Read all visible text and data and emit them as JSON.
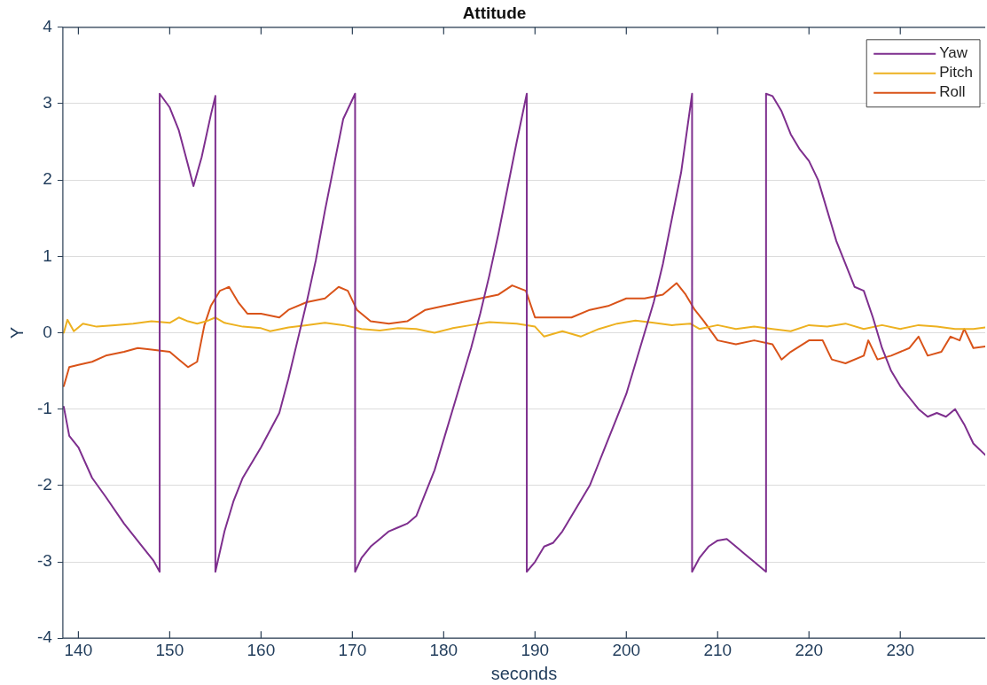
{
  "chart_data": {
    "type": "line",
    "title": "Attitude",
    "xlabel": "seconds",
    "ylabel": "Y",
    "xlim": [
      138.3,
      239.3
    ],
    "xticks": [
      140,
      150,
      160,
      170,
      180,
      190,
      200,
      210,
      220,
      230
    ],
    "ylim": [
      -4,
      4
    ],
    "yticks": [
      -4,
      -3,
      -2,
      -1,
      0,
      1,
      2,
      3,
      4
    ],
    "grid": "y",
    "legend": "top right",
    "marker": "none",
    "line_style": "solid",
    "series": [
      {
        "name": "Yaw",
        "color": "#7e2f8e",
        "x": [
          138.4,
          139,
          140,
          141.5,
          143,
          145,
          147,
          148.2,
          148.9,
          148.9,
          150,
          151,
          152,
          152.6,
          153.5,
          154.5,
          155,
          155,
          156,
          157,
          158,
          160,
          162,
          163,
          164,
          165,
          166,
          167,
          168,
          169,
          170.3,
          170.3,
          171,
          172,
          173,
          174,
          175,
          176,
          177,
          178,
          179,
          180,
          181,
          182,
          183,
          184,
          185,
          186,
          187,
          188,
          189.1,
          189.1,
          190,
          191,
          192,
          193,
          194,
          195,
          196,
          197,
          198,
          199,
          200,
          201,
          202,
          203,
          204,
          205,
          206,
          207.2,
          207.2,
          208,
          209,
          210,
          211,
          212,
          213,
          214,
          215.3,
          215.3,
          216,
          217,
          218,
          219,
          220,
          221,
          222,
          223,
          224,
          225,
          226,
          227,
          228,
          229,
          230,
          231,
          232,
          233,
          234,
          235,
          236,
          237,
          238,
          239.3
        ],
        "values": [
          -0.97,
          -1.35,
          -1.5,
          -1.9,
          -2.15,
          -2.5,
          -2.8,
          -2.98,
          -3.13,
          3.13,
          2.95,
          2.65,
          2.2,
          1.92,
          2.3,
          2.85,
          3.1,
          -3.13,
          -2.6,
          -2.2,
          -1.9,
          -1.5,
          -1.05,
          -0.6,
          -0.1,
          0.4,
          0.95,
          1.6,
          2.2,
          2.8,
          3.13,
          -3.13,
          -2.95,
          -2.8,
          -2.7,
          -2.6,
          -2.55,
          -2.5,
          -2.4,
          -2.1,
          -1.8,
          -1.4,
          -1,
          -0.6,
          -0.2,
          0.25,
          0.75,
          1.3,
          1.9,
          2.5,
          3.13,
          -3.13,
          -3,
          -2.8,
          -2.75,
          -2.6,
          -2.4,
          -2.2,
          -2,
          -1.7,
          -1.4,
          -1.1,
          -0.8,
          -0.4,
          0,
          0.4,
          0.9,
          1.5,
          2.1,
          3.13,
          -3.13,
          -2.95,
          -2.8,
          -2.72,
          -2.7,
          -2.8,
          -2.9,
          -3,
          -3.13,
          3.13,
          3.1,
          2.9,
          2.6,
          2.4,
          2.25,
          2,
          1.6,
          1.2,
          0.9,
          0.6,
          0.55,
          0.2,
          -0.2,
          -0.5,
          -0.7,
          -0.85,
          -1,
          -1.1,
          -1.05,
          -1.1,
          -1,
          -1.2,
          -1.45,
          -1.6
        ]
      },
      {
        "name": "Pitch",
        "color": "#edb120",
        "x": [
          138.4,
          138.8,
          139.5,
          140.5,
          142,
          144,
          146,
          148,
          150,
          151,
          152,
          153,
          154,
          155,
          156,
          158,
          160,
          161,
          163,
          165,
          167,
          169,
          171,
          173,
          175,
          177,
          179,
          181,
          183,
          185,
          188,
          190,
          191,
          193,
          195,
          197,
          199,
          201,
          203,
          205,
          207,
          208,
          210,
          212,
          214,
          216,
          218,
          220,
          222,
          224,
          226,
          228,
          230,
          232,
          234,
          236,
          238,
          239.3
        ],
        "values": [
          0,
          0.17,
          0.02,
          0.12,
          0.08,
          0.1,
          0.12,
          0.15,
          0.13,
          0.2,
          0.15,
          0.12,
          0.15,
          0.2,
          0.13,
          0.08,
          0.06,
          0.02,
          0.07,
          0.1,
          0.13,
          0.1,
          0.05,
          0.03,
          0.06,
          0.05,
          0,
          0.06,
          0.1,
          0.14,
          0.12,
          0.08,
          -0.05,
          0.02,
          -0.05,
          0.05,
          0.12,
          0.16,
          0.13,
          0.1,
          0.12,
          0.05,
          0.1,
          0.05,
          0.08,
          0.05,
          0.02,
          0.1,
          0.08,
          0.12,
          0.05,
          0.1,
          0.05,
          0.1,
          0.08,
          0.05,
          0.05,
          0.07
        ]
      },
      {
        "name": "Roll",
        "color": "#d95319",
        "x": [
          138.4,
          139,
          140,
          141.5,
          143,
          145,
          146.5,
          148,
          150,
          151,
          152,
          153,
          153.8,
          154.5,
          155.5,
          156.5,
          157.5,
          158.5,
          160,
          162,
          163,
          165,
          167,
          168.5,
          169.5,
          170.5,
          172,
          174,
          176,
          178,
          180,
          182,
          184,
          186,
          187.5,
          189,
          190,
          192,
          194,
          196,
          198,
          200,
          202,
          204,
          205.5,
          206.5,
          207.5,
          208.5,
          210,
          212,
          214,
          216,
          217,
          218,
          220,
          221.5,
          222.5,
          224,
          226,
          226.5,
          227.5,
          229,
          231,
          232,
          233,
          234.5,
          235.5,
          236.5,
          237,
          238,
          239.3
        ],
        "values": [
          -0.7,
          -0.45,
          -0.42,
          -0.38,
          -0.3,
          -0.25,
          -0.2,
          -0.22,
          -0.25,
          -0.35,
          -0.45,
          -0.38,
          0.1,
          0.35,
          0.55,
          0.6,
          0.4,
          0.25,
          0.25,
          0.2,
          0.3,
          0.4,
          0.45,
          0.6,
          0.55,
          0.3,
          0.15,
          0.12,
          0.15,
          0.3,
          0.35,
          0.4,
          0.45,
          0.5,
          0.62,
          0.55,
          0.2,
          0.2,
          0.2,
          0.3,
          0.35,
          0.45,
          0.45,
          0.5,
          0.65,
          0.5,
          0.3,
          0.15,
          -0.1,
          -0.15,
          -0.1,
          -0.15,
          -0.35,
          -0.25,
          -0.1,
          -0.1,
          -0.35,
          -0.4,
          -0.3,
          -0.1,
          -0.35,
          -0.3,
          -0.2,
          -0.05,
          -0.3,
          -0.25,
          -0.05,
          -0.1,
          0.05,
          -0.2,
          -0.18
        ]
      }
    ]
  }
}
